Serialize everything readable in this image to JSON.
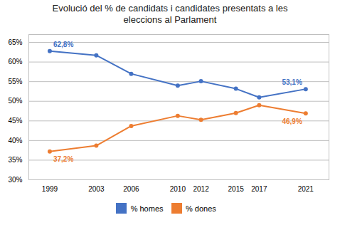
{
  "chart_data": {
    "type": "line",
    "title": "Evolució del % de candidats i candidates presentats a les\neleccions al Parlament",
    "x": [
      1999,
      2003,
      2006,
      2010,
      2012,
      2015,
      2017,
      2021
    ],
    "series": [
      {
        "name": "% homes",
        "color": "#4472C4",
        "marker": "circle",
        "values": [
          62.8,
          61.7,
          57.0,
          54.0,
          55.1,
          53.2,
          51.0,
          53.1
        ]
      },
      {
        "name": "% dones",
        "color": "#ED7D31",
        "marker": "circle",
        "values": [
          37.2,
          38.7,
          43.7,
          46.3,
          45.3,
          47.0,
          49.0,
          46.9
        ]
      }
    ],
    "annotations": [
      {
        "text": "62,8%",
        "series": "% homes",
        "x": 1999
      },
      {
        "text": "53,1%",
        "series": "% homes",
        "x": 2021
      },
      {
        "text": "37,2%",
        "series": "% dones",
        "x": 1999
      },
      {
        "text": "46,9%",
        "series": "% dones",
        "x": 2021
      }
    ],
    "xlim": [
      1997.2,
      2023.0
    ],
    "xticks": [
      1999,
      2003,
      2006,
      2010,
      2012,
      2015,
      2017,
      2021
    ],
    "ylim": [
      30,
      67
    ],
    "yticks": [
      {
        "value": 30,
        "label": "30%"
      },
      {
        "value": 35,
        "label": "35%"
      },
      {
        "value": 40,
        "label": "40%"
      },
      {
        "value": 45,
        "label": "45%"
      },
      {
        "value": 50,
        "label": "50%"
      },
      {
        "value": 55,
        "label": "55%"
      },
      {
        "value": 60,
        "label": "60%"
      },
      {
        "value": 65,
        "label": "65%"
      }
    ],
    "grid": "y",
    "legend": "bottom"
  }
}
